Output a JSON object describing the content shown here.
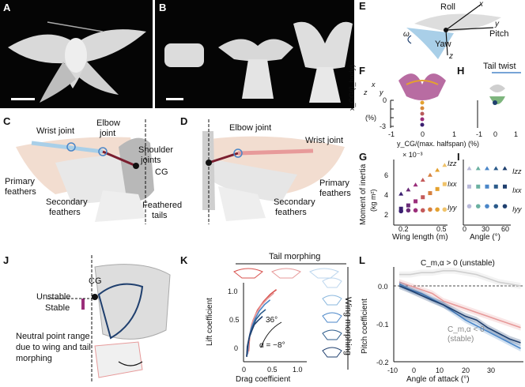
{
  "panels": {
    "A": "A",
    "B": "B",
    "C": "C",
    "D": "D",
    "E": "E",
    "F": "F",
    "G": "G",
    "H": "H",
    "I": "I",
    "J": "J",
    "K": "K",
    "L": "L"
  },
  "panel_c": {
    "wrist": "Wrist joint",
    "elbow": "Elbow",
    "elbow2": "joint",
    "shoulder": "Shoulder",
    "shoulder2": "joints",
    "primary": "Primary",
    "primary2": "feathers",
    "secondary": "Secondary",
    "secondary2": "feathers",
    "cg": "CG",
    "tails": "Feathered",
    "tails2": "tails"
  },
  "panel_d": {
    "elbow": "Elbow joint",
    "wrist": "Wrist joint",
    "primary": "Primary",
    "primary2": "feathers",
    "secondary": "Secondary",
    "secondary2": "feathers"
  },
  "panel_e": {
    "roll": "Roll",
    "pitch": "Pitch",
    "yaw": "Yaw",
    "x": "x",
    "y": "y",
    "z": "z",
    "omega": "ω"
  },
  "panel_f": {
    "ylabel": "x_CG/(l_body)",
    "yunit": "(%)",
    "xlabel": "y_CG/(max. halfspan) (%)",
    "yticks": [
      "0",
      "-1",
      "-2",
      "-3"
    ],
    "xticks": [
      "-1",
      "0",
      "1"
    ],
    "x": "x",
    "y": "y",
    "z": "z"
  },
  "panel_h": {
    "title": "Tail twist",
    "xticks": [
      "-1",
      "0",
      "1"
    ]
  },
  "panel_g": {
    "scale": "× 10⁻³",
    "ylabel": "Moment of inertia",
    "yunit": "(kg m²)",
    "xlabel": "Wing length (m)",
    "yticks": [
      "2",
      "4",
      "6"
    ],
    "xticks": [
      "0.2",
      "0.5"
    ],
    "series": [
      "Izz",
      "Ixx",
      "Iyy"
    ],
    "izz_label": "Izz",
    "ixx_label": "Ixx",
    "iyy_label": "Iyy"
  },
  "panel_i": {
    "xlabel": "Angle (°)",
    "xticks": [
      "0",
      "30",
      "60"
    ],
    "izz_label": "Izz",
    "ixx_label": "Ixx",
    "iyy_label": "Iyy"
  },
  "panel_j": {
    "cg": "CG",
    "unstable": "Unstable",
    "stable": "Stable",
    "np1": "Neutral point range",
    "np2": "due to wing and tail",
    "np3": "morphing"
  },
  "panel_k": {
    "ylabel": "Lift coefficient",
    "xlabel": "Drag coefficient",
    "tail": "Tail morphing",
    "wing": "Wing morphing",
    "angle_high": "36°",
    "angle_low": "α = −8°",
    "yticks": [
      "0",
      "0.5",
      "1.0"
    ],
    "xticks": [
      "0",
      "0.5",
      "1.0"
    ]
  },
  "panel_l": {
    "ylabel": "Pitch coefficient",
    "xlabel": "Angle of attack (°)",
    "unstable": "C_m,α > 0 (unstable)",
    "stable": "C_m,α < 0",
    "stable2": "(stable)",
    "yticks": [
      "0.0",
      "-0.1",
      "-0.2"
    ],
    "xticks": [
      "-10",
      "0",
      "10",
      "20",
      "30"
    ]
  },
  "chart_data": [
    {
      "type": "scatter",
      "title": "G",
      "xlabel": "Wing length (m)",
      "ylabel": "Moment of inertia (kg m²) × 10⁻³",
      "xlim": [
        0.15,
        0.52
      ],
      "ylim": [
        0,
        8
      ],
      "series": [
        {
          "name": "Izz",
          "x": [
            0.2,
            0.25,
            0.3,
            0.35,
            0.4,
            0.45,
            0.5
          ],
          "values": [
            3.8,
            4.3,
            4.9,
            5.5,
            6.1,
            6.7,
            7.3
          ]
        },
        {
          "name": "Ixx",
          "x": [
            0.2,
            0.25,
            0.3,
            0.35,
            0.4,
            0.45,
            0.5
          ],
          "values": [
            2.0,
            2.4,
            2.9,
            3.4,
            3.9,
            4.4,
            5.0
          ]
        },
        {
          "name": "Iyy",
          "x": [
            0.2,
            0.25,
            0.3,
            0.35,
            0.4,
            0.45,
            0.5
          ],
          "values": [
            1.7,
            1.8,
            1.8,
            1.8,
            1.9,
            1.9,
            1.9
          ]
        }
      ]
    },
    {
      "type": "scatter",
      "title": "I",
      "xlabel": "Angle (°)",
      "ylabel": "Moment of inertia",
      "xlim": [
        -10,
        70
      ],
      "ylim": [
        0,
        8
      ],
      "series": [
        {
          "name": "Izz",
          "x": [
            0,
            15,
            30,
            45,
            60
          ],
          "values": [
            6.9,
            6.9,
            6.9,
            6.9,
            6.9
          ]
        },
        {
          "name": "Ixx",
          "x": [
            0,
            15,
            30,
            45,
            60
          ],
          "values": [
            4.7,
            4.7,
            4.7,
            4.7,
            4.7
          ]
        },
        {
          "name": "Iyy",
          "x": [
            0,
            15,
            30,
            45,
            60
          ],
          "values": [
            2.3,
            2.3,
            2.3,
            2.3,
            2.3
          ]
        }
      ]
    },
    {
      "type": "line",
      "title": "K",
      "xlabel": "Drag coefficient",
      "ylabel": "Lift coefficient",
      "xlim": [
        0,
        1.0
      ],
      "ylim": [
        -0.1,
        1.05
      ],
      "series": [
        {
          "name": "config1",
          "x": [
            0.08,
            0.1,
            0.15,
            0.22,
            0.32,
            0.42,
            0.52
          ],
          "values": [
            0.05,
            0.3,
            0.5,
            0.65,
            0.78,
            0.88,
            0.95
          ]
        },
        {
          "name": "config2",
          "x": [
            0.07,
            0.09,
            0.13,
            0.2,
            0.28,
            0.38,
            0.48
          ],
          "values": [
            0.02,
            0.25,
            0.45,
            0.6,
            0.72,
            0.82,
            0.9
          ]
        },
        {
          "name": "config3",
          "x": [
            0.06,
            0.08,
            0.12,
            0.18,
            0.25,
            0.33,
            0.42
          ],
          "values": [
            0.0,
            0.2,
            0.38,
            0.52,
            0.64,
            0.73,
            0.8
          ]
        },
        {
          "name": "config4",
          "x": [
            0.05,
            0.07,
            0.1,
            0.15,
            0.2,
            0.27,
            0.35
          ],
          "values": [
            -0.02,
            0.16,
            0.3,
            0.42,
            0.52,
            0.6,
            0.66
          ]
        },
        {
          "name": "config5",
          "x": [
            0.05,
            0.06,
            0.09,
            0.13,
            0.17,
            0.23,
            0.3
          ],
          "values": [
            -0.03,
            0.12,
            0.25,
            0.35,
            0.44,
            0.5,
            0.56
          ]
        }
      ]
    },
    {
      "type": "line",
      "title": "L",
      "xlabel": "Angle of attack (°)",
      "ylabel": "Pitch coefficient",
      "xlim": [
        -10,
        37
      ],
      "ylim": [
        -0.2,
        0.05
      ],
      "series": [
        {
          "name": "light",
          "x": [
            -8,
            -4,
            0,
            4,
            8,
            12,
            16,
            20,
            24,
            28,
            32,
            36
          ],
          "values": [
            0.03,
            0.03,
            0.035,
            0.035,
            0.04,
            0.04,
            0.035,
            0.03,
            0.02,
            0.01,
            0.005,
            0.0
          ]
        },
        {
          "name": "pink",
          "x": [
            -8,
            -4,
            0,
            4,
            8,
            12,
            16,
            20,
            24,
            28,
            32,
            36
          ],
          "values": [
            0.01,
            0.0,
            -0.01,
            -0.02,
            -0.04,
            -0.05,
            -0.06,
            -0.07,
            -0.08,
            -0.09,
            -0.1,
            -0.11
          ]
        },
        {
          "name": "blue",
          "x": [
            -8,
            -4,
            0,
            4,
            8,
            12,
            16,
            20,
            24,
            28,
            32,
            36
          ],
          "values": [
            0.005,
            -0.01,
            -0.02,
            -0.035,
            -0.05,
            -0.07,
            -0.09,
            -0.105,
            -0.12,
            -0.135,
            -0.15,
            -0.165
          ]
        },
        {
          "name": "navy",
          "x": [
            -8,
            -4,
            0,
            4,
            8,
            12,
            16,
            20,
            24,
            28,
            32,
            36
          ],
          "values": [
            0.0,
            -0.012,
            -0.025,
            -0.038,
            -0.05,
            -0.065,
            -0.08,
            -0.09,
            -0.11,
            -0.125,
            -0.14,
            -0.15
          ]
        }
      ]
    }
  ],
  "colors": {
    "izz": "#3a1f70",
    "ixx": "#9a2e7a",
    "iyy": "#e4a12f",
    "blue": "#4a86c8",
    "navy": "#1f3f6e",
    "pink": "#e79a9a",
    "red": "#d8534f"
  }
}
